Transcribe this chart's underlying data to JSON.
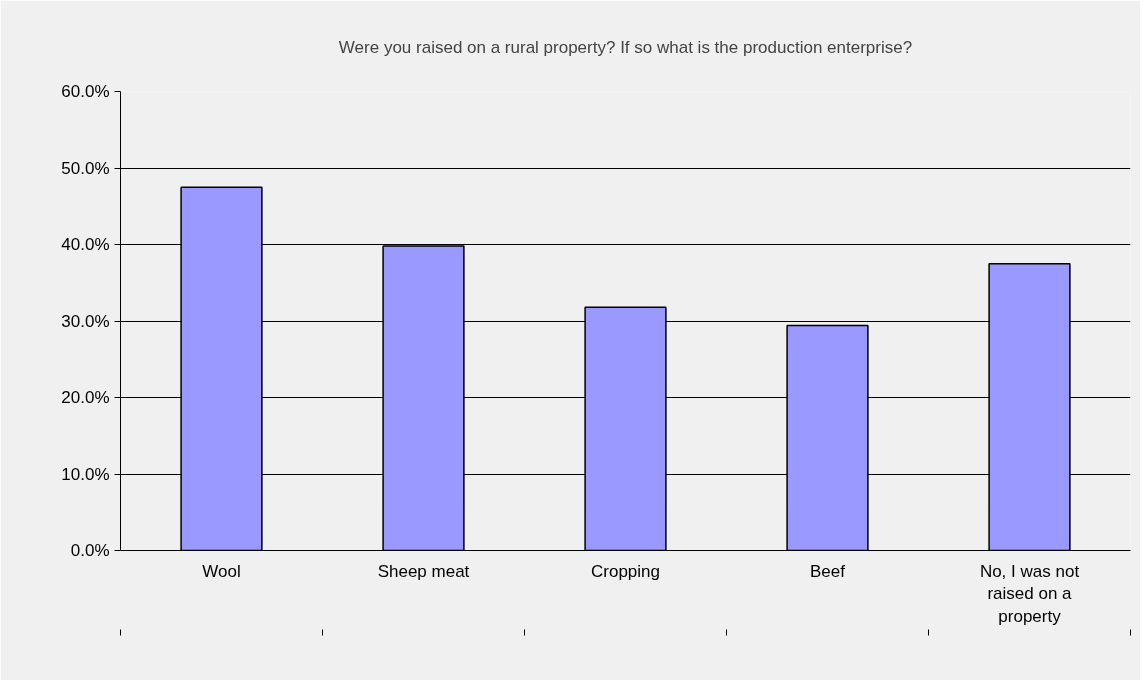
{
  "chart_data": {
    "type": "bar",
    "title": "Were you raised on a rural property? If so what is the production enterprise?",
    "categories": [
      "Wool",
      "Sheep meat",
      "Cropping",
      "Beef",
      "No, I was not raised on a property"
    ],
    "values": [
      47.5,
      39.8,
      31.8,
      29.4,
      37.5
    ],
    "color": "#9999ff",
    "ylim": [
      0,
      60
    ],
    "yticks": [
      {
        "value": 0,
        "label": "0.0%"
      },
      {
        "value": 10,
        "label": "10.0%"
      },
      {
        "value": 20,
        "label": "20.0%"
      },
      {
        "value": 30,
        "label": "30.0%"
      },
      {
        "value": 40,
        "label": "40.0%"
      },
      {
        "value": 50,
        "label": "50.0%"
      },
      {
        "value": 60,
        "label": "60.0%"
      }
    ],
    "grid": "y"
  }
}
